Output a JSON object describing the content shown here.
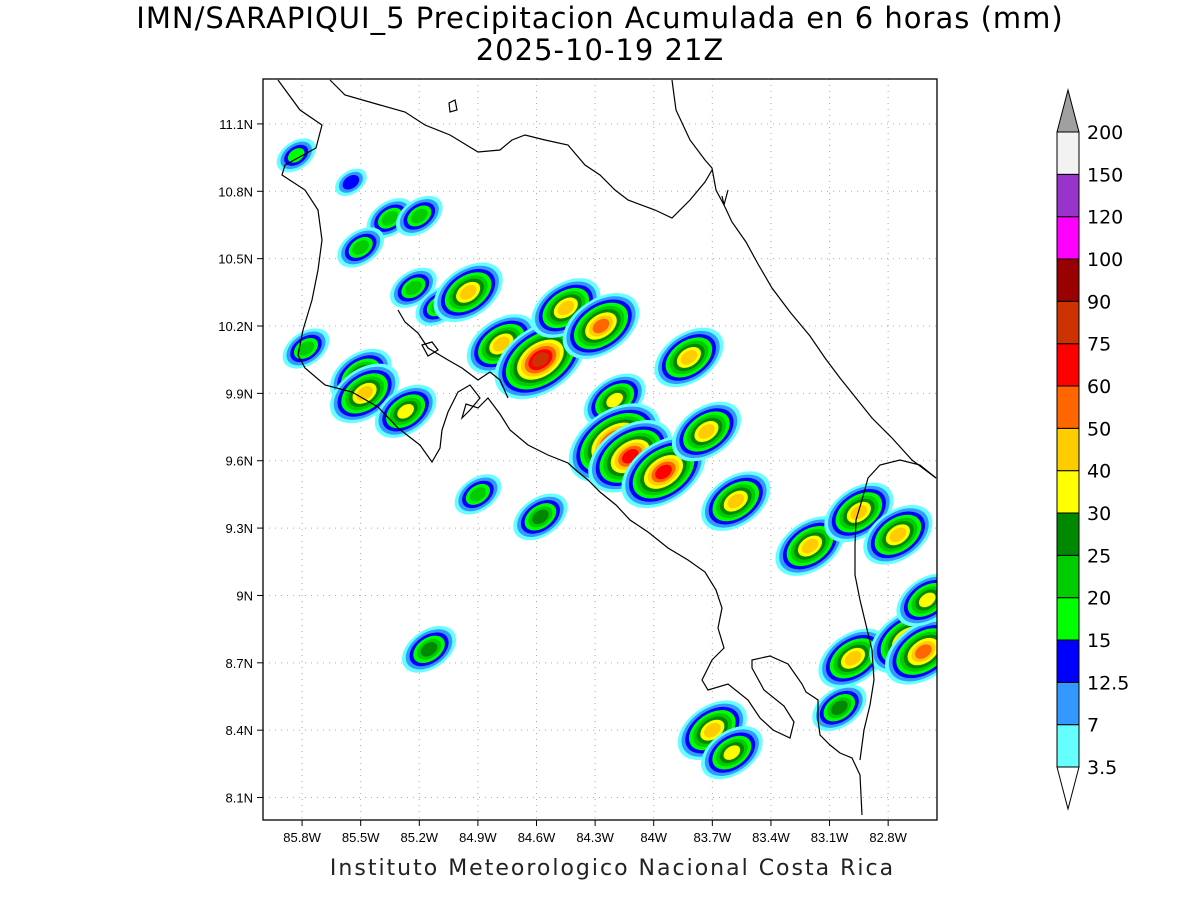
{
  "title_line1": "IMN/SARAPIQUI_5 Precipitacion Acumulada en 6 horas (mm)",
  "title_line2": "2025-10-19 21Z",
  "footer": "Instituto Meteorologico Nacional Costa Rica",
  "map": {
    "lon_range": [
      -86.0,
      -82.55
    ],
    "lat_range": [
      8.0,
      11.3
    ],
    "lon_ticks": [
      {
        "value": -85.8,
        "label": "85.8W"
      },
      {
        "value": -85.5,
        "label": "85.5W"
      },
      {
        "value": -85.2,
        "label": "85.2W"
      },
      {
        "value": -84.9,
        "label": "84.9W"
      },
      {
        "value": -84.6,
        "label": "84.6W"
      },
      {
        "value": -84.3,
        "label": "84.3W"
      },
      {
        "value": -84.0,
        "label": "84W"
      },
      {
        "value": -83.7,
        "label": "83.7W"
      },
      {
        "value": -83.4,
        "label": "83.4W"
      },
      {
        "value": -83.1,
        "label": "83.1W"
      },
      {
        "value": -82.8,
        "label": "82.8W"
      }
    ],
    "lat_ticks": [
      {
        "value": 11.1,
        "label": "11.1N"
      },
      {
        "value": 10.8,
        "label": "10.8N"
      },
      {
        "value": 10.5,
        "label": "10.5N"
      },
      {
        "value": 10.2,
        "label": "10.2N"
      },
      {
        "value": 9.9,
        "label": "9.9N"
      },
      {
        "value": 9.6,
        "label": "9.6N"
      },
      {
        "value": 9.3,
        "label": "9.3N"
      },
      {
        "value": 9.0,
        "label": "9N"
      },
      {
        "value": 8.7,
        "label": "8.7N"
      },
      {
        "value": 8.4,
        "label": "8.4N"
      },
      {
        "value": 8.1,
        "label": "8.1N"
      }
    ],
    "grid_color": "#aaaaaa"
  },
  "colorbar": {
    "levels": [
      "3.5",
      "7",
      "12.5",
      "15",
      "20",
      "25",
      "30",
      "40",
      "50",
      "60",
      "75",
      "90",
      "100",
      "120",
      "150",
      "200"
    ],
    "colors": [
      "#66ffff",
      "#3399ff",
      "#0000ff",
      "#00ff00",
      "#00cc00",
      "#008800",
      "#ffff00",
      "#ffcc00",
      "#ff6600",
      "#ff0000",
      "#cc3300",
      "#990000",
      "#ff00ff",
      "#9933cc",
      "#f2f2f2",
      "#a0a0a0"
    ]
  },
  "precip_cells": [
    {
      "lon": -85.83,
      "lat": 10.96,
      "level": 3
    },
    {
      "lon": -85.55,
      "lat": 10.84,
      "level": 2
    },
    {
      "lon": -85.35,
      "lat": 10.68,
      "level": 4
    },
    {
      "lon": -85.2,
      "lat": 10.69,
      "level": 4
    },
    {
      "lon": -85.5,
      "lat": 10.55,
      "level": 4
    },
    {
      "lon": -85.23,
      "lat": 10.37,
      "level": 4
    },
    {
      "lon": -85.1,
      "lat": 10.29,
      "level": 4
    },
    {
      "lon": -84.95,
      "lat": 10.35,
      "level": 7
    },
    {
      "lon": -85.78,
      "lat": 10.1,
      "level": 4
    },
    {
      "lon": -85.5,
      "lat": 9.98,
      "level": 6
    },
    {
      "lon": -85.48,
      "lat": 9.9,
      "level": 7
    },
    {
      "lon": -85.27,
      "lat": 9.82,
      "level": 6
    },
    {
      "lon": -84.78,
      "lat": 10.12,
      "level": 7
    },
    {
      "lon": -84.58,
      "lat": 10.05,
      "level": 10
    },
    {
      "lon": -84.45,
      "lat": 10.28,
      "level": 7
    },
    {
      "lon": -84.27,
      "lat": 10.2,
      "level": 8
    },
    {
      "lon": -84.2,
      "lat": 9.87,
      "level": 6
    },
    {
      "lon": -84.2,
      "lat": 9.68,
      "level": 10
    },
    {
      "lon": -84.12,
      "lat": 9.62,
      "level": 9
    },
    {
      "lon": -83.95,
      "lat": 9.55,
      "level": 9
    },
    {
      "lon": -83.82,
      "lat": 10.06,
      "level": 7
    },
    {
      "lon": -83.73,
      "lat": 9.73,
      "level": 7
    },
    {
      "lon": -84.58,
      "lat": 9.35,
      "level": 5
    },
    {
      "lon": -84.9,
      "lat": 9.45,
      "level": 4
    },
    {
      "lon": -85.15,
      "lat": 8.76,
      "level": 5
    },
    {
      "lon": -83.58,
      "lat": 9.42,
      "level": 7
    },
    {
      "lon": -83.2,
      "lat": 9.22,
      "level": 7
    },
    {
      "lon": -82.95,
      "lat": 9.37,
      "level": 7
    },
    {
      "lon": -82.75,
      "lat": 9.27,
      "level": 7
    },
    {
      "lon": -83.7,
      "lat": 8.4,
      "level": 7
    },
    {
      "lon": -83.6,
      "lat": 8.3,
      "level": 6
    },
    {
      "lon": -82.98,
      "lat": 8.72,
      "level": 7
    },
    {
      "lon": -82.7,
      "lat": 8.8,
      "level": 8
    },
    {
      "lon": -82.62,
      "lat": 8.75,
      "level": 8
    },
    {
      "lon": -83.05,
      "lat": 8.5,
      "level": 5
    },
    {
      "lon": -82.6,
      "lat": 8.98,
      "level": 6
    }
  ]
}
